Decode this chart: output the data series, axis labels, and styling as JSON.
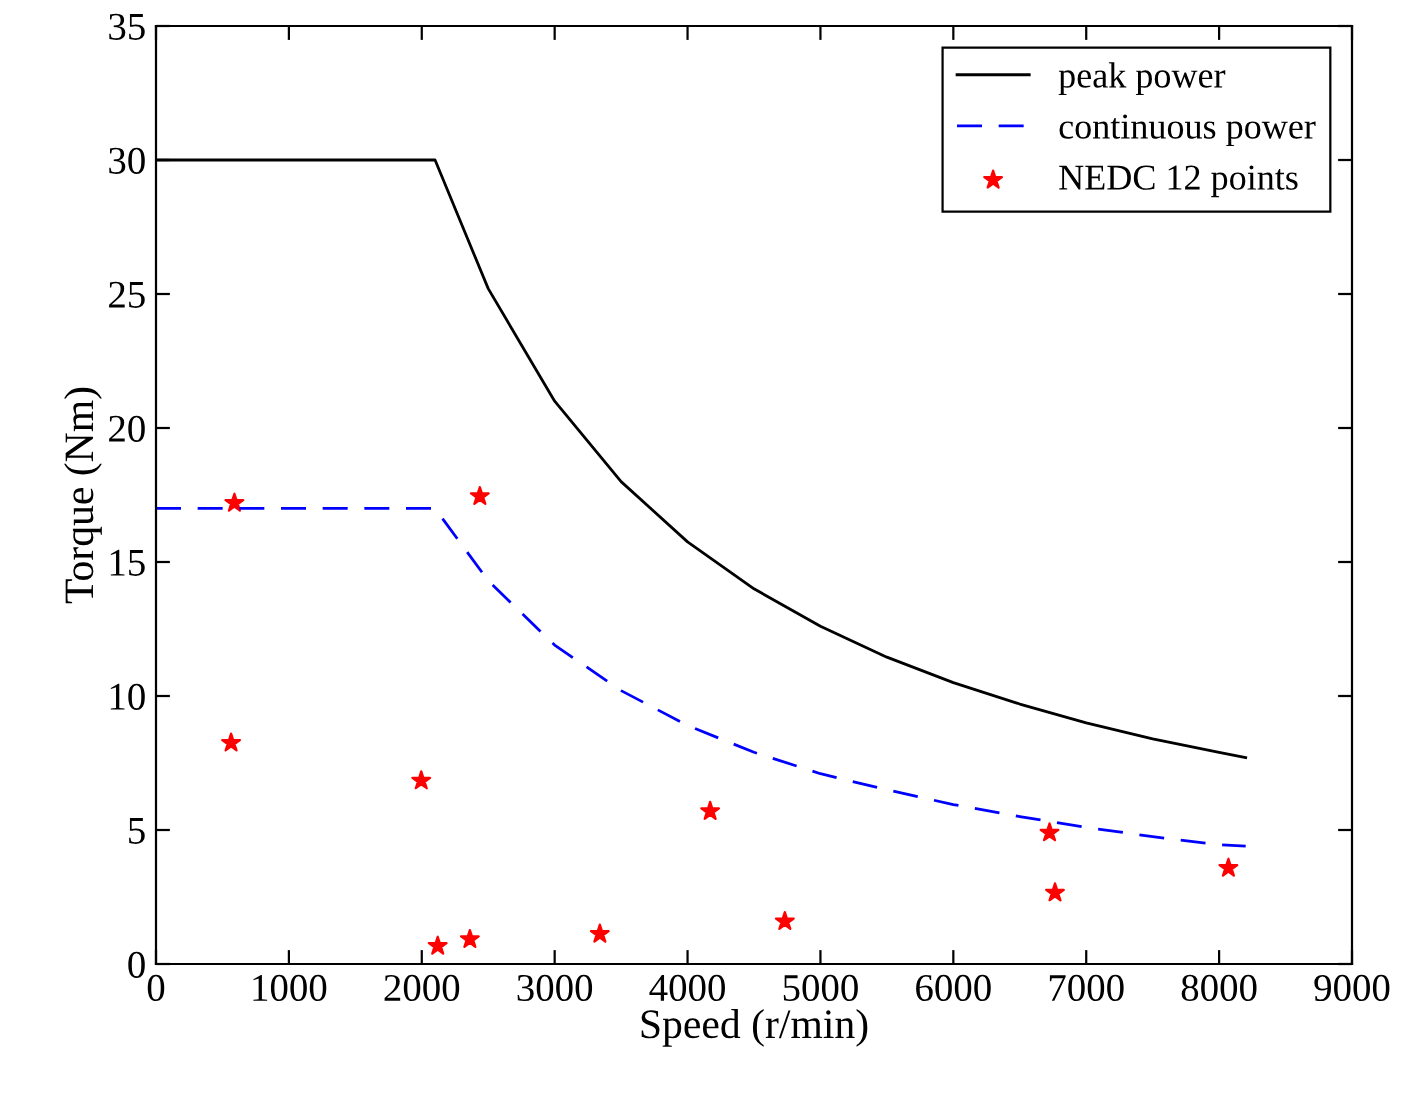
{
  "chart_data": {
    "type": "line",
    "xlabel": "Speed (r/min)",
    "ylabel": "Torque (Nm)",
    "xlim": [
      0,
      9000
    ],
    "ylim": [
      0,
      35
    ],
    "xticks": [
      0,
      1000,
      2000,
      3000,
      4000,
      5000,
      6000,
      7000,
      8000,
      9000
    ],
    "yticks": [
      0,
      5,
      10,
      15,
      20,
      25,
      30,
      35
    ],
    "grid": false,
    "legend": "top right",
    "series": [
      {
        "name": "peak power",
        "color": "#000000",
        "line_style": "solid",
        "marker": "none",
        "x": [
          0,
          2100,
          2500,
          3000,
          3500,
          4000,
          4500,
          5000,
          5500,
          6000,
          6500,
          7000,
          7500,
          8000,
          8200
        ],
        "values": [
          30,
          30,
          25.2,
          21,
          18,
          15.75,
          14,
          12.6,
          11.45,
          10.5,
          9.7,
          9.0,
          8.4,
          7.9,
          7.7
        ]
      },
      {
        "name": "continuous power",
        "color": "#0000ff",
        "line_style": "dashed",
        "marker": "none",
        "x": [
          0,
          2100,
          2500,
          3000,
          3500,
          4000,
          4500,
          5000,
          5500,
          6000,
          6500,
          7000,
          7500,
          8000,
          8200
        ],
        "values": [
          17,
          17,
          14.3,
          11.9,
          10.2,
          8.9,
          7.9,
          7.1,
          6.5,
          5.95,
          5.5,
          5.1,
          4.75,
          4.45,
          4.4
        ]
      },
      {
        "name": "NEDC 12 points",
        "type": "scatter",
        "color": "#ff0000",
        "marker": "star",
        "x": [
          590,
          565,
          2437,
          1996,
          2120,
          2362,
          3340,
          4170,
          4732,
          6724,
          6765,
          8070
        ],
        "values": [
          17.2,
          8.25,
          17.45,
          6.84,
          0.67,
          0.92,
          1.12,
          5.7,
          1.59,
          4.9,
          2.66,
          3.58
        ]
      }
    ]
  }
}
